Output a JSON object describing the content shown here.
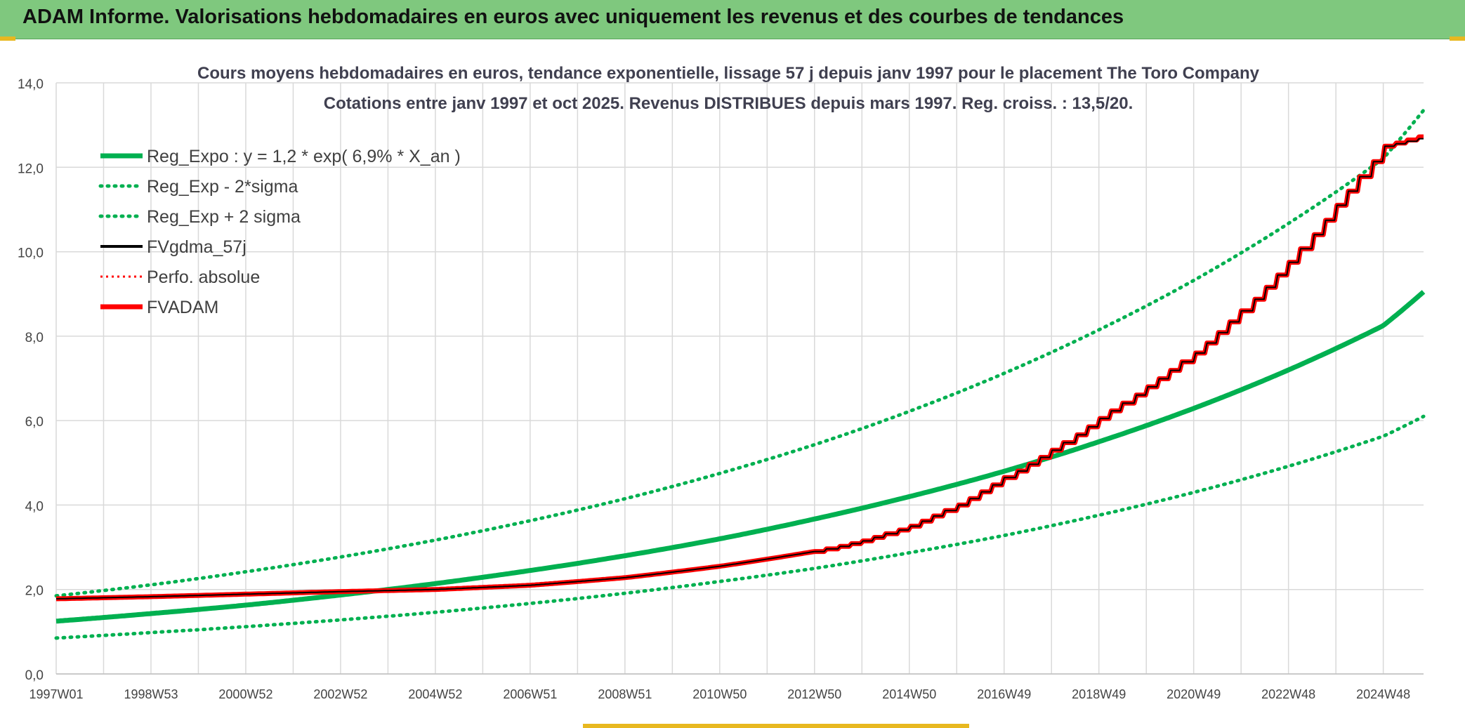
{
  "header": {
    "title": "ADAM Informe. Valorisations hebdomadaires en euros avec uniquement les revenus et des courbes de tendances"
  },
  "colors": {
    "header_bg": "#7fc87e",
    "reg_expo": "#00b050",
    "sigma_bands": "#00b050",
    "fvgdma": "#000000",
    "perfo": "#ff0000",
    "fvadam": "#ff0000",
    "grid": "#d9d9d9"
  },
  "chart_data": {
    "type": "line",
    "title": "Cours moyens hebdomadaires en euros, tendance exponentielle, lissage 57 j depuis janv 1997 pour le placement The Toro Company",
    "subtitle": "Cotations entre janv 1997 et oct 2025. Revenus DISTRIBUES depuis mars 1997. Reg. croiss. : 13,5/20.",
    "x_tick_labels": [
      "1997W01",
      "1998W53",
      "2000W52",
      "2002W52",
      "2004W52",
      "2006W51",
      "2008W51",
      "2010W50",
      "2012W50",
      "2014W50",
      "2016W49",
      "2018W49",
      "2020W49",
      "2022W48",
      "2024W48"
    ],
    "x_tick_years": [
      1997.0,
      1999.0,
      2001.0,
      2003.0,
      2005.0,
      2007.0,
      2009.0,
      2011.0,
      2013.0,
      2015.0,
      2017.0,
      2019.0,
      2021.0,
      2023.0,
      2025.0
    ],
    "x_range": [
      1997.0,
      2025.85
    ],
    "ylim": [
      0,
      14
    ],
    "y_tick_labels": [
      "0,0",
      "2,0",
      "4,0",
      "6,0",
      "8,0",
      "10,0",
      "12,0",
      "14,0"
    ],
    "y_tick_values": [
      0,
      2,
      4,
      6,
      8,
      10,
      12,
      14
    ],
    "grid": true,
    "legend_position": "top-left",
    "legend": [
      {
        "label": "Reg_Expo : y = 1,2 * exp( 6,9% *  X_an )",
        "style": "solid-thick",
        "color": "#00b050"
      },
      {
        "label": "Reg_Exp - 2*sigma",
        "style": "dotted",
        "color": "#00b050"
      },
      {
        "label": "Reg_Exp + 2 sigma",
        "style": "dotted",
        "color": "#00b050"
      },
      {
        "label": "FVgdma_57j",
        "style": "solid",
        "color": "#000000"
      },
      {
        "label": "Perfo. absolue",
        "style": "dotted-thin",
        "color": "#ff0000"
      },
      {
        "label": "FVADAM",
        "style": "solid-thick",
        "color": "#ff0000"
      }
    ],
    "series": [
      {
        "name": "Reg_Expo : y = 1,2 * exp( 6,9% *  X_an )",
        "x": [
          1997,
          1999,
          2001,
          2003,
          2005,
          2007,
          2009,
          2011,
          2013,
          2015,
          2017,
          2019,
          2021,
          2023,
          2025,
          2025.85
        ],
        "values": [
          1.25,
          1.43,
          1.63,
          1.87,
          2.14,
          2.45,
          2.8,
          3.2,
          3.67,
          4.2,
          4.8,
          5.5,
          6.29,
          7.2,
          8.25,
          9.05
        ]
      },
      {
        "name": "Reg_Exp - 2*sigma",
        "x": [
          1997,
          1999,
          2001,
          2003,
          2005,
          2007,
          2009,
          2011,
          2013,
          2015,
          2017,
          2019,
          2021,
          2023,
          2025,
          2025.85
        ],
        "values": [
          0.85,
          0.98,
          1.12,
          1.28,
          1.46,
          1.67,
          1.91,
          2.19,
          2.5,
          2.87,
          3.28,
          3.76,
          4.3,
          4.92,
          5.63,
          6.1
        ]
      },
      {
        "name": "Reg_Exp + 2 sigma",
        "x": [
          1997,
          1999,
          2001,
          2003,
          2005,
          2007,
          2009,
          2011,
          2013,
          2015,
          2017,
          2019,
          2021,
          2023,
          2025,
          2025.85
        ],
        "values": [
          1.85,
          2.11,
          2.42,
          2.77,
          3.17,
          3.63,
          4.15,
          4.75,
          5.43,
          6.22,
          7.12,
          8.15,
          9.32,
          10.67,
          12.21,
          13.35
        ]
      },
      {
        "name": "FVgdma_57j",
        "x": [
          1997,
          1999,
          2001,
          2003,
          2005,
          2007,
          2009,
          2011,
          2013,
          2014,
          2015,
          2016,
          2017,
          2018,
          2019,
          2020,
          2021,
          2022,
          2023,
          2024,
          2025,
          2025.85
        ],
        "values": [
          1.78,
          1.83,
          1.89,
          1.95,
          2.0,
          2.1,
          2.28,
          2.55,
          2.9,
          3.15,
          3.5,
          4.0,
          4.65,
          5.3,
          6.05,
          6.8,
          7.6,
          8.6,
          9.75,
          11.1,
          12.5,
          12.7
        ]
      },
      {
        "name": "FVADAM",
        "x": [
          1997,
          1999,
          2001,
          2003,
          2005,
          2007,
          2009,
          2011,
          2013,
          2014,
          2015,
          2016,
          2017,
          2018,
          2019,
          2020,
          2021,
          2022,
          2023,
          2024,
          2025,
          2025.85
        ],
        "values": [
          1.78,
          1.83,
          1.89,
          1.95,
          2.0,
          2.1,
          2.28,
          2.55,
          2.9,
          3.15,
          3.5,
          4.0,
          4.65,
          5.3,
          6.05,
          6.8,
          7.6,
          8.6,
          9.75,
          11.1,
          12.5,
          12.75
        ]
      }
    ]
  }
}
